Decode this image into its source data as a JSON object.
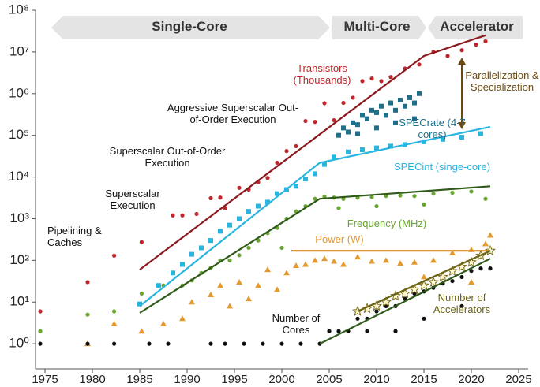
{
  "chart_data": {
    "type": "scatter",
    "log_y": true,
    "xlim": [
      1974,
      2026
    ],
    "ylim": [
      0.25,
      100000000
    ],
    "xticks": [
      1975,
      1980,
      1985,
      1990,
      1995,
      2000,
      2005,
      2010,
      2015,
      2020,
      2025
    ],
    "yticks": [
      {
        "value": 1,
        "label": "10⁰"
      },
      {
        "value": 10,
        "label": "10¹"
      },
      {
        "value": 100,
        "label": "10²"
      },
      {
        "value": 1000,
        "label": "10³"
      },
      {
        "value": 10000,
        "label": "10⁴"
      },
      {
        "value": 100000,
        "label": "10⁵"
      },
      {
        "value": 1000000,
        "label": "10⁶"
      },
      {
        "value": 10000000,
        "label": "10⁷"
      },
      {
        "value": 100000000,
        "label": "10⁸"
      }
    ],
    "eras": [
      "Single-Core",
      "Multi-Core",
      "Accelerator"
    ],
    "annotations": [
      "Pipelining & Caches",
      "Superscalar Execution",
      "Superscalar Out-of-Order Execution",
      "Aggressive Superscalar Out-of-Order Execution",
      "Parallelization & Specialization"
    ],
    "series": [
      {
        "name": "Transistors (Thousands)",
        "color": "#c0272d",
        "marker": "circle",
        "x": [
          1974.5,
          1979.5,
          1982.3,
          1985.2,
          1988.5,
          1989.5,
          1991,
          1992.5,
          1993.5,
          1994,
          1995.5,
          1996.5,
          1997.5,
          1998.5,
          1999.5,
          2000.5,
          2001.5,
          2002.5,
          2003.5,
          2004.5,
          2005.5,
          2006.5,
          2007.5,
          2008.5,
          2009.5,
          2010.5,
          2011.5,
          2013,
          2014.5,
          2016,
          2017.5,
          2019,
          2020.5,
          2021.5
        ],
        "values": [
          6,
          30,
          130,
          275,
          1200,
          1200,
          1300,
          3100,
          3200,
          1800,
          5500,
          5000,
          7500,
          9500,
          22000,
          42000,
          55000,
          220000,
          210000,
          590000,
          230000,
          600000,
          800000,
          2000000,
          2300000,
          2000000,
          2500000,
          4000000,
          5000000,
          10000000,
          8000000,
          11000000,
          15000000,
          18000000
        ],
        "trend": {
          "color": "#8b1a1f",
          "x": [
            1985,
            2015,
            2021.5
          ],
          "values": [
            60,
            8000000,
            25000000
          ]
        }
      },
      {
        "name": "SPECrate (4-7 cores)",
        "color": "#1f6f8b",
        "marker": "square",
        "x": [
          2006,
          2006.5,
          2007,
          2007.5,
          2008,
          2008.5,
          2009,
          2009.5,
          2010,
          2010.5,
          2011,
          2011.5,
          2012,
          2012.5,
          2013,
          2013.5,
          2014,
          2014.5,
          2008,
          2010,
          2012,
          2014
        ],
        "values": [
          100000,
          150000,
          120000,
          200000,
          180000,
          300000,
          250000,
          400000,
          350000,
          500000,
          300000,
          600000,
          400000,
          700000,
          500000,
          800000,
          600000,
          1000000,
          110000,
          150000,
          200000,
          250000
        ]
      },
      {
        "name": "SPECint (singe-core)",
        "color": "#29b5e0",
        "marker": "square",
        "x": [
          1985,
          1987,
          1988.5,
          1989.5,
          1990.5,
          1991.5,
          1992.5,
          1993.5,
          1994.5,
          1995.5,
          1996.5,
          1997.5,
          1998.5,
          1999.5,
          2000.5,
          2001.5,
          2002.5,
          2003.5,
          2004.5,
          2005.5,
          2007,
          2008.5,
          2010,
          2011.5,
          2013,
          2015,
          2017,
          2019,
          2021
        ],
        "values": [
          9,
          25,
          50,
          80,
          140,
          200,
          300,
          500,
          700,
          1000,
          1500,
          2000,
          2500,
          4000,
          5000,
          6000,
          9000,
          12000,
          20000,
          30000,
          40000,
          45000,
          50000,
          55000,
          60000,
          70000,
          80000,
          90000,
          110000
        ],
        "trend": {
          "color": "#29b5e0",
          "x": [
            1985,
            2004,
            2022
          ],
          "values": [
            8,
            22000,
            160000
          ]
        }
      },
      {
        "name": "Frequency (MHz)",
        "color": "#6aa531",
        "marker": "circle",
        "x": [
          1974.5,
          1979.5,
          1982.3,
          1985.2,
          1987.5,
          1989.5,
          1990.5,
          1991.5,
          1992.5,
          1993.5,
          1994.5,
          1995.5,
          1996.5,
          1997.5,
          1998.5,
          1999.5,
          2000.5,
          2001.5,
          2002.5,
          2003.5,
          2004.5,
          2005.5,
          2006.5,
          2008,
          2009.5,
          2011,
          2012.5,
          2014,
          2016,
          2018,
          2020,
          2021.5,
          2000,
          2006,
          2010,
          2015
        ],
        "values": [
          2,
          5,
          6,
          16,
          25,
          25,
          33,
          50,
          66,
          100,
          100,
          133,
          200,
          300,
          450,
          600,
          1000,
          1500,
          2000,
          3000,
          3400,
          3200,
          3000,
          3200,
          3300,
          3500,
          3600,
          3500,
          4000,
          4200,
          4500,
          3000,
          200,
          1800,
          2000,
          2200
        ],
        "trend": {
          "color": "#2f5a17",
          "x": [
            1985,
            2004,
            2022
          ],
          "values": [
            5.5,
            3000,
            6000
          ]
        }
      },
      {
        "name": "Power (W)",
        "color": "#e59a2f",
        "marker": "triangle",
        "x": [
          1979.5,
          1982.3,
          1985.2,
          1987.5,
          1989.5,
          1990.5,
          1992.5,
          1993.5,
          1994.5,
          1995.5,
          1996.5,
          1997.5,
          1998.5,
          1999.5,
          2000.5,
          2001.5,
          2002.5,
          2003.5,
          2004.5,
          2005.5,
          2006.5,
          2008,
          2009.5,
          2011,
          2012.5,
          2014,
          2016,
          2018,
          2020,
          2021.5,
          2022,
          2020,
          2015
        ],
        "values": [
          1,
          3,
          2,
          3,
          4,
          10,
          15,
          25,
          8,
          30,
          12,
          25,
          60,
          20,
          50,
          75,
          80,
          100,
          110,
          95,
          80,
          120,
          95,
          100,
          85,
          90,
          100,
          150,
          180,
          250,
          400,
          30,
          40
        ],
        "trend": {
          "color": "#e08a1e",
          "x": [
            2001,
            2022
          ],
          "values": [
            170,
            170
          ]
        }
      },
      {
        "name": "Number of Cores",
        "color": "#111111",
        "marker": "circle",
        "x": [
          1974.5,
          1979.5,
          1982.3,
          1986,
          1988,
          1992.5,
          1994,
          1996,
          1998,
          2000,
          2002,
          2004,
          2005,
          2006,
          2007,
          2008,
          2009,
          2010,
          2011,
          2012,
          2013,
          2014,
          2015,
          2016,
          2017,
          2018,
          2019,
          2020,
          2021,
          2022,
          2015,
          2019,
          2009,
          2012
        ],
        "values": [
          1,
          1,
          1,
          1,
          1,
          1,
          1,
          1,
          1,
          1,
          1,
          1,
          2,
          2,
          2,
          4,
          4,
          6,
          8,
          8,
          12,
          16,
          18,
          22,
          28,
          32,
          40,
          56,
          64,
          64,
          4,
          8,
          2,
          2
        ],
        "trend": {
          "color": "#2f5a17",
          "x": [
            2004,
            2022
          ],
          "values": [
            1,
            110
          ]
        }
      },
      {
        "name": "Number of Accelerators",
        "color": "#7a6a1a",
        "marker": "star",
        "x": [
          2008,
          2009,
          2010,
          2011,
          2012,
          2013,
          2014,
          2015,
          2016,
          2017,
          2018,
          2019,
          2020,
          2021,
          2022
        ],
        "values": [
          6,
          7,
          8,
          10,
          14,
          16,
          20,
          25,
          30,
          40,
          55,
          70,
          90,
          130,
          170
        ],
        "trend": {
          "color": "#6b6516",
          "x": [
            2008,
            2022
          ],
          "values": [
            6,
            170
          ]
        }
      }
    ]
  }
}
